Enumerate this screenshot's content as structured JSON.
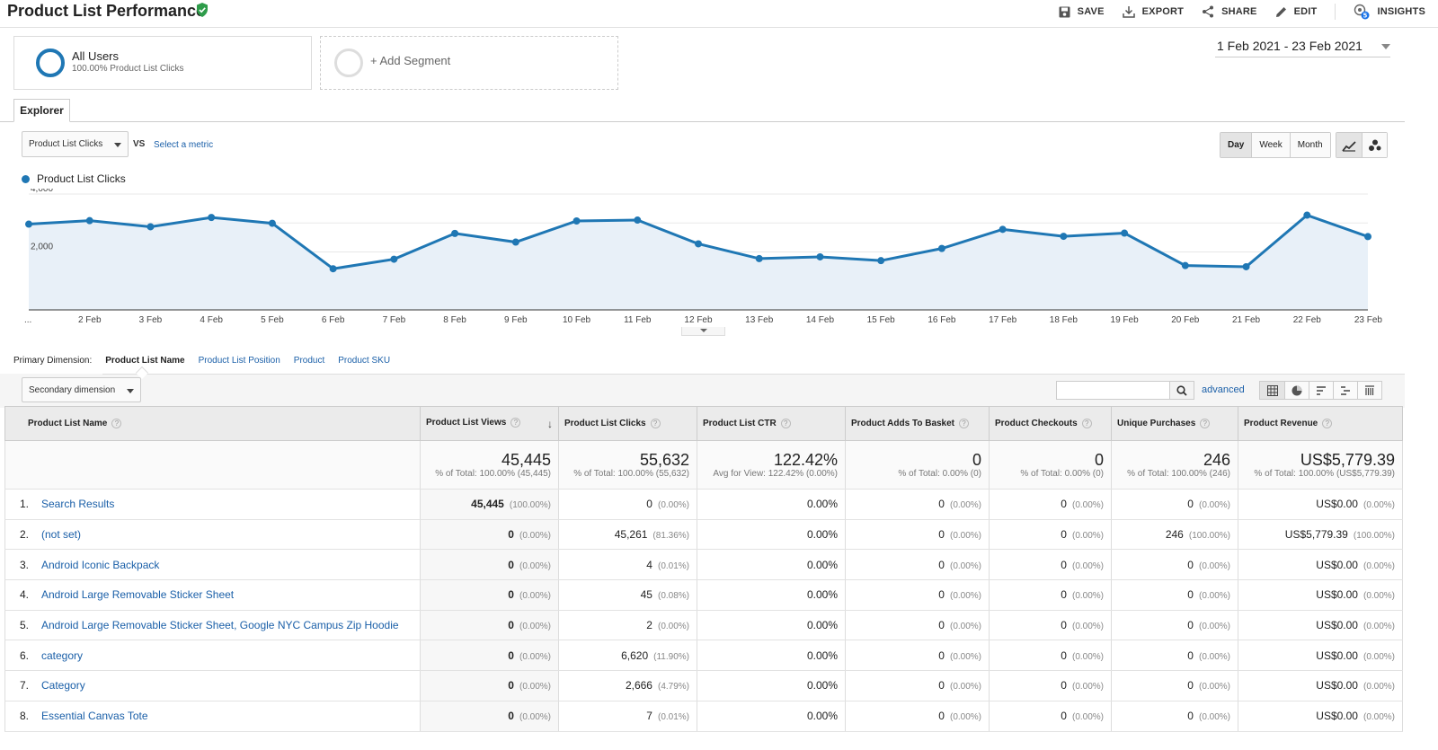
{
  "header": {
    "title": "Product List Performance",
    "actions": {
      "save": "SAVE",
      "export": "EXPORT",
      "share": "SHARE",
      "edit": "EDIT",
      "insights": "INSIGHTS"
    },
    "insights_badge": "5"
  },
  "segments": {
    "active": {
      "title": "All Users",
      "subtitle": "100.00% Product List Clicks"
    },
    "add": "+ Add Segment"
  },
  "date_range": "1 Feb 2021 - 23 Feb 2021",
  "tabs": {
    "explorer": "Explorer"
  },
  "metric_controls": {
    "metric": "Product List Clicks",
    "vs": "VS",
    "select_metric": "Select a metric"
  },
  "granularity": {
    "day": "Day",
    "week": "Week",
    "month": "Month",
    "selected": "Day"
  },
  "chart_data": {
    "type": "line",
    "series": [
      {
        "name": "Product List Clicks",
        "color": "#1f77b4",
        "values": [
          2960,
          3080,
          2870,
          3190,
          2990,
          1420,
          1750,
          2640,
          2340,
          3070,
          3100,
          2280,
          1770,
          1830,
          1700,
          2120,
          2780,
          2540,
          2650,
          1530,
          1490,
          3270,
          2530
        ]
      }
    ],
    "x": [
      "...",
      "2 Feb",
      "3 Feb",
      "4 Feb",
      "5 Feb",
      "6 Feb",
      "7 Feb",
      "8 Feb",
      "9 Feb",
      "10 Feb",
      "11 Feb",
      "12 Feb",
      "13 Feb",
      "14 Feb",
      "15 Feb",
      "16 Feb",
      "17 Feb",
      "18 Feb",
      "19 Feb",
      "20 Feb",
      "21 Feb",
      "22 Feb",
      "23 Feb"
    ],
    "y_ticks": [
      "2,000",
      "4,000"
    ],
    "ylim": [
      0,
      4000
    ],
    "area_fill": "#e8f0f8"
  },
  "primary_dimension": {
    "label": "Primary Dimension:",
    "active": "Product List Name",
    "options": [
      "Product List Position",
      "Product",
      "Product SKU"
    ]
  },
  "secondary_dimension": "Secondary dimension",
  "search": {
    "value": "",
    "advanced": "advanced"
  },
  "table": {
    "columns": [
      "Product List Name",
      "Product List Views",
      "Product List Clicks",
      "Product List CTR",
      "Product Adds To Basket",
      "Product Checkouts",
      "Unique Purchases",
      "Product Revenue"
    ],
    "totals": [
      {
        "value": "45,445",
        "sub": "% of Total: 100.00% (45,445)"
      },
      {
        "value": "55,632",
        "sub": "% of Total: 100.00% (55,632)"
      },
      {
        "value": "122.42%",
        "sub": "Avg for View: 122.42% (0.00%)"
      },
      {
        "value": "0",
        "sub": "% of Total: 0.00% (0)"
      },
      {
        "value": "0",
        "sub": "% of Total: 0.00% (0)"
      },
      {
        "value": "246",
        "sub": "% of Total: 100.00% (246)"
      },
      {
        "value": "US$5,779.39",
        "sub": "% of Total: 100.00% (US$5,779.39)"
      }
    ],
    "rows": [
      {
        "num": "1.",
        "name": "Search Results",
        "views": "45,445",
        "views_pct": "(100.00%)",
        "clicks": "0",
        "clicks_pct": "(0.00%)",
        "ctr": "0.00%",
        "adds": "0",
        "adds_pct": "(0.00%)",
        "checkouts": "0",
        "checkouts_pct": "(0.00%)",
        "purchases": "0",
        "purchases_pct": "(0.00%)",
        "revenue": "US$0.00",
        "revenue_pct": "(0.00%)"
      },
      {
        "num": "2.",
        "name": "(not set)",
        "views": "0",
        "views_pct": "(0.00%)",
        "clicks": "45,261",
        "clicks_pct": "(81.36%)",
        "ctr": "0.00%",
        "adds": "0",
        "adds_pct": "(0.00%)",
        "checkouts": "0",
        "checkouts_pct": "(0.00%)",
        "purchases": "246",
        "purchases_pct": "(100.00%)",
        "revenue": "US$5,779.39",
        "revenue_pct": "(100.00%)"
      },
      {
        "num": "3.",
        "name": "Android Iconic Backpack",
        "views": "0",
        "views_pct": "(0.00%)",
        "clicks": "4",
        "clicks_pct": "(0.01%)",
        "ctr": "0.00%",
        "adds": "0",
        "adds_pct": "(0.00%)",
        "checkouts": "0",
        "checkouts_pct": "(0.00%)",
        "purchases": "0",
        "purchases_pct": "(0.00%)",
        "revenue": "US$0.00",
        "revenue_pct": "(0.00%)"
      },
      {
        "num": "4.",
        "name": "Android Large Removable Sticker Sheet",
        "views": "0",
        "views_pct": "(0.00%)",
        "clicks": "45",
        "clicks_pct": "(0.08%)",
        "ctr": "0.00%",
        "adds": "0",
        "adds_pct": "(0.00%)",
        "checkouts": "0",
        "checkouts_pct": "(0.00%)",
        "purchases": "0",
        "purchases_pct": "(0.00%)",
        "revenue": "US$0.00",
        "revenue_pct": "(0.00%)"
      },
      {
        "num": "5.",
        "name": "Android Large Removable Sticker Sheet, Google NYC Campus Zip Hoodie",
        "views": "0",
        "views_pct": "(0.00%)",
        "clicks": "2",
        "clicks_pct": "(0.00%)",
        "ctr": "0.00%",
        "adds": "0",
        "adds_pct": "(0.00%)",
        "checkouts": "0",
        "checkouts_pct": "(0.00%)",
        "purchases": "0",
        "purchases_pct": "(0.00%)",
        "revenue": "US$0.00",
        "revenue_pct": "(0.00%)"
      },
      {
        "num": "6.",
        "name": "category",
        "views": "0",
        "views_pct": "(0.00%)",
        "clicks": "6,620",
        "clicks_pct": "(11.90%)",
        "ctr": "0.00%",
        "adds": "0",
        "adds_pct": "(0.00%)",
        "checkouts": "0",
        "checkouts_pct": "(0.00%)",
        "purchases": "0",
        "purchases_pct": "(0.00%)",
        "revenue": "US$0.00",
        "revenue_pct": "(0.00%)"
      },
      {
        "num": "7.",
        "name": "Category",
        "views": "0",
        "views_pct": "(0.00%)",
        "clicks": "2,666",
        "clicks_pct": "(4.79%)",
        "ctr": "0.00%",
        "adds": "0",
        "adds_pct": "(0.00%)",
        "checkouts": "0",
        "checkouts_pct": "(0.00%)",
        "purchases": "0",
        "purchases_pct": "(0.00%)",
        "revenue": "US$0.00",
        "revenue_pct": "(0.00%)"
      },
      {
        "num": "8.",
        "name": "Essential Canvas Tote",
        "views": "0",
        "views_pct": "(0.00%)",
        "clicks": "7",
        "clicks_pct": "(0.01%)",
        "ctr": "0.00%",
        "adds": "0",
        "adds_pct": "(0.00%)",
        "checkouts": "0",
        "checkouts_pct": "(0.00%)",
        "purchases": "0",
        "purchases_pct": "(0.00%)",
        "revenue": "US$0.00",
        "revenue_pct": "(0.00%)"
      }
    ]
  }
}
